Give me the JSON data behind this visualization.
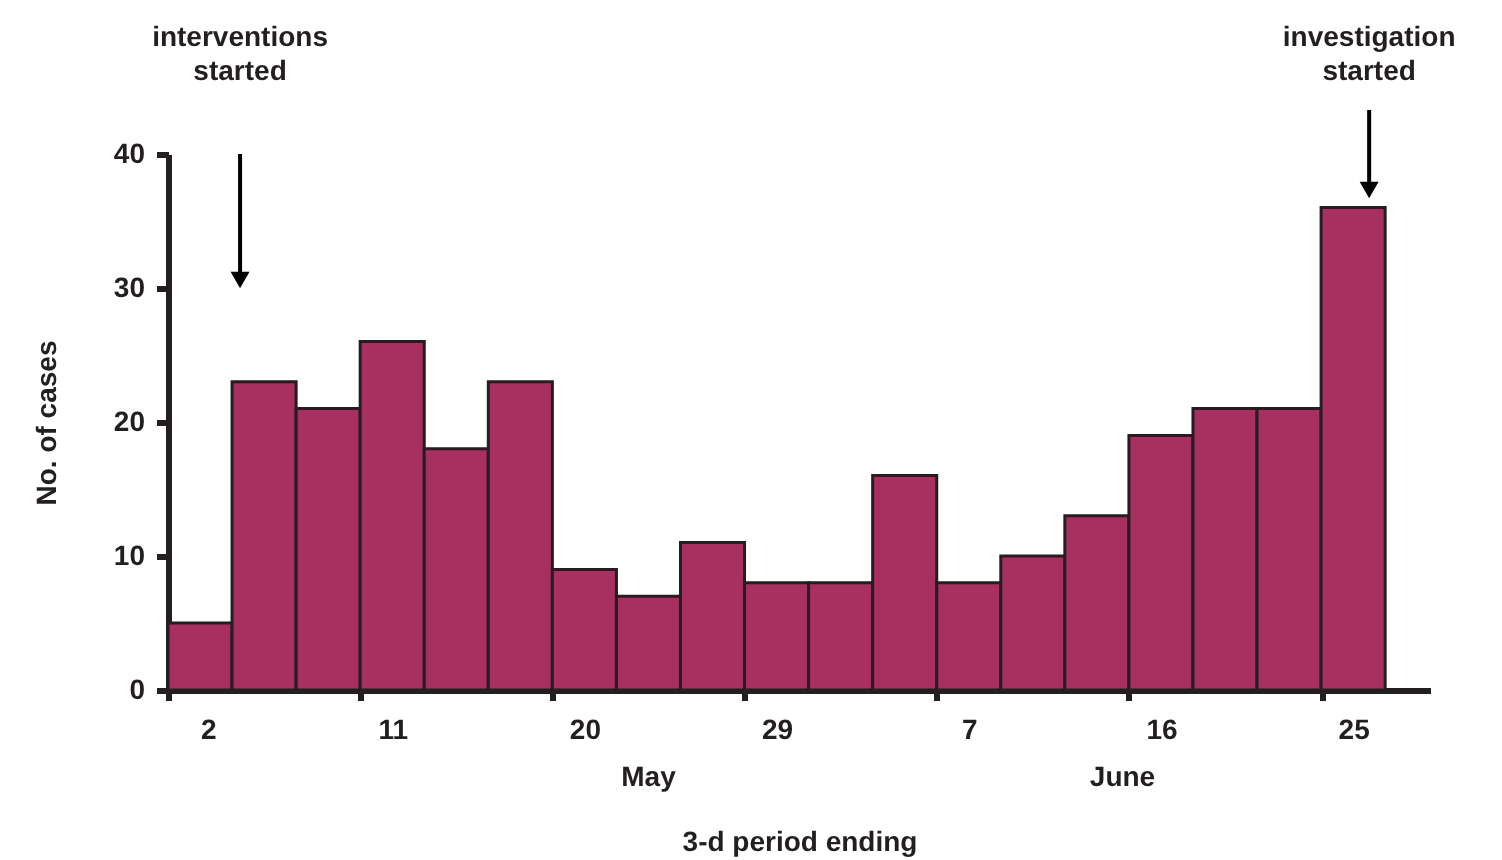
{
  "chart_data": {
    "type": "bar",
    "xlabel": "3-d period ending",
    "ylabel": "No. of cases",
    "categories": [
      "2",
      null,
      null,
      "11",
      null,
      null,
      "20",
      null,
      null,
      "29",
      null,
      null,
      "7",
      null,
      null,
      "16",
      null,
      null,
      "25"
    ],
    "values": [
      5,
      23,
      21,
      26,
      18,
      23,
      9,
      7,
      11,
      8,
      8,
      16,
      8,
      10,
      13,
      19,
      21,
      21,
      36
    ],
    "color": "#a83060",
    "ylim": [
      0,
      40
    ],
    "yticks": [
      0,
      10,
      20,
      30,
      40
    ],
    "grid": false,
    "annotations": [
      "interventions started",
      "investigation started",
      "May",
      "June"
    ]
  }
}
